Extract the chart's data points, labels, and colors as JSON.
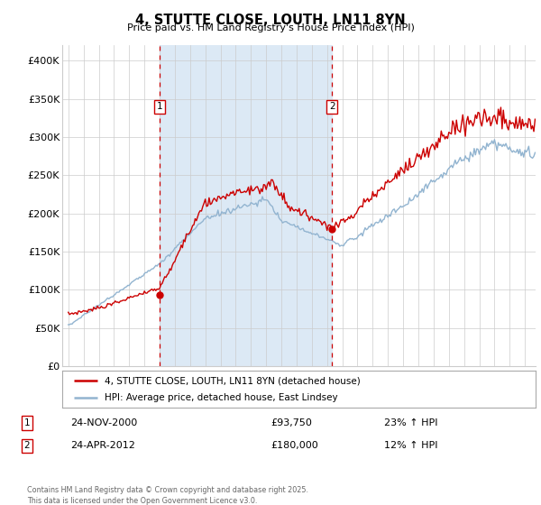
{
  "title": "4, STUTTE CLOSE, LOUTH, LN11 8YN",
  "subtitle": "Price paid vs. HM Land Registry's House Price Index (HPI)",
  "legend_line1": "4, STUTTE CLOSE, LOUTH, LN11 8YN (detached house)",
  "legend_line2": "HPI: Average price, detached house, East Lindsey",
  "annotation1_label": "1",
  "annotation1_date": "24-NOV-2000",
  "annotation1_price": "£93,750",
  "annotation1_hpi": "23% ↑ HPI",
  "annotation2_label": "2",
  "annotation2_date": "24-APR-2012",
  "annotation2_price": "£180,000",
  "annotation2_hpi": "12% ↑ HPI",
  "footer": "Contains HM Land Registry data © Crown copyright and database right 2025.\nThis data is licensed under the Open Government Licence v3.0.",
  "line_color_red": "#cc0000",
  "line_color_blue": "#92b4d0",
  "shade_color": "#dce9f5",
  "dashed_color": "#cc0000",
  "grid_color": "#cccccc",
  "bg_color": "#ffffff",
  "ylim": [
    0,
    420000
  ],
  "yticks": [
    0,
    50000,
    100000,
    150000,
    200000,
    250000,
    300000,
    350000,
    400000
  ],
  "ylabels": [
    "£0",
    "£50K",
    "£100K",
    "£150K",
    "£200K",
    "£250K",
    "£300K",
    "£350K",
    "£400K"
  ],
  "sale1_x": 2001.0,
  "sale1_y": 93750,
  "sale2_x": 2012.33,
  "sale2_y": 180000,
  "xmin": 1994.6,
  "xmax": 2025.7
}
